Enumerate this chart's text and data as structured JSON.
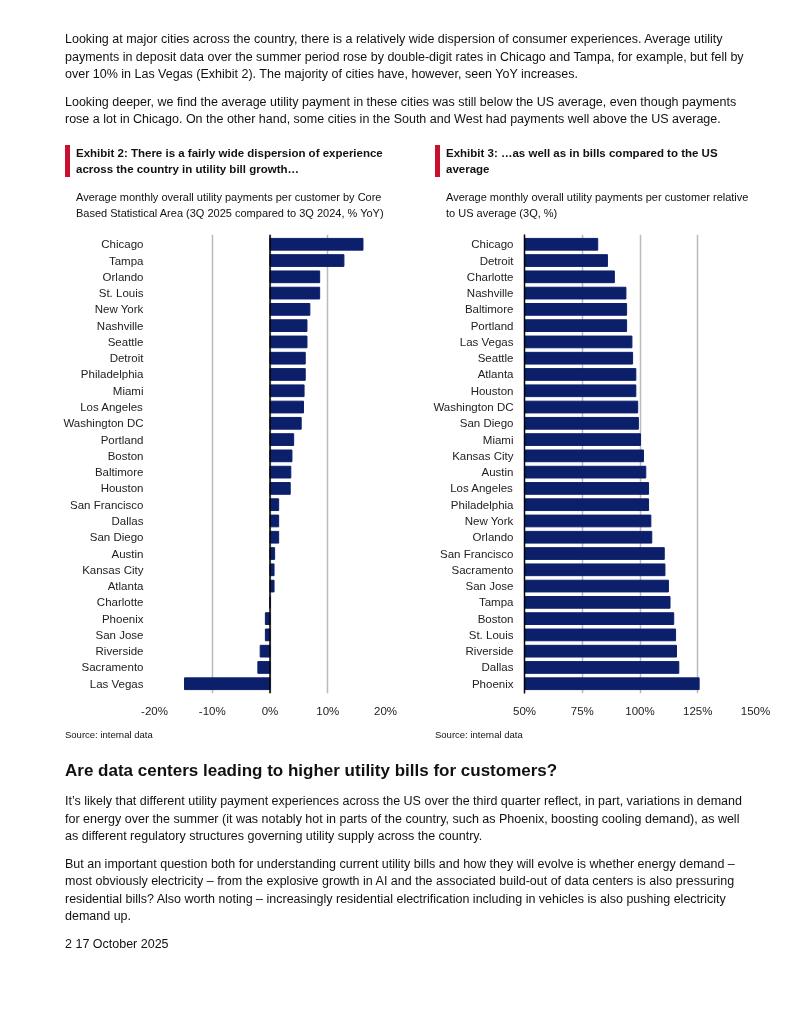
{
  "chart_data": [
    {
      "type": "other",
      "annotations": [
        "Looking at major cities across the country, there is a relatively wide dispersion of consumer experiences. Average utility payments in deposit data over the summer period rose by double-digit rates in Chicago and Tampa, for example, but fell by over 10% in Las Vegas (Exhibit 2). The majority of cities have, however, seen YoY increases.",
        "Looking deeper, we find the average utility payment in these cities was still below the US average, even though payments rose a lot in Chicago. On the other hand, some cities in the South and West had payments well above the US average."
      ]
    },
    {
      "type": "bar",
      "orientation": "horizontal",
      "title": "Exhibit 2: There is a fairly wide dispersion of experience across the country in utility bill growth…",
      "subtitle": "Average monthly overall utility payments per customer by Core Based Statistical Area (3Q 2025 compared to 3Q 2024, % YoY)",
      "categories": [
        "Chicago",
        "Tampa",
        "Orlando",
        "St. Louis",
        "New York",
        "Nashville",
        "Seattle",
        "Detroit",
        "Philadelphia",
        "Miami",
        "Los Angeles",
        "Washington DC",
        "Portland",
        "Boston",
        "Baltimore",
        "Houston",
        "San Francisco",
        "Dallas",
        "San Diego",
        "Austin",
        "Kansas City",
        "Atlanta",
        "Charlotte",
        "Phoenix",
        "San Jose",
        "Riverside",
        "Sacramento",
        "Las Vegas"
      ],
      "values": [
        16.1,
        12.8,
        8.6,
        8.6,
        6.9,
        6.4,
        6.4,
        6.1,
        6.1,
        5.9,
        5.8,
        5.4,
        4.1,
        3.8,
        3.6,
        3.5,
        1.5,
        1.5,
        1.5,
        0.8,
        0.7,
        0.7,
        0,
        -0.8,
        -0.8,
        -1.7,
        -2.1,
        -14.8
      ],
      "color": "#0c1f6b",
      "xlim": [
        -20,
        20
      ],
      "xticks": [
        {
          "value": -20,
          "label": "-20%"
        },
        {
          "value": -10,
          "label": "-10%"
        },
        {
          "value": 0,
          "label": "0%"
        },
        {
          "value": 10,
          "label": "10%"
        },
        {
          "value": 20,
          "label": "20%"
        }
      ],
      "grid": "x",
      "ref_lines": [
        {
          "axis": "x",
          "value": 0,
          "color": "#000000"
        }
      ],
      "annotations": [
        "Source: internal data"
      ]
    },
    {
      "type": "bar",
      "orientation": "horizontal",
      "title": "Exhibit 3: …as well as in bills compared to the US average",
      "subtitle": "Average monthly overall utility payments per customer relative to US average (3Q, %)",
      "categories": [
        "Chicago",
        "Detroit",
        "Charlotte",
        "Nashville",
        "Baltimore",
        "Portland",
        "Las Vegas",
        "Seattle",
        "Atlanta",
        "Houston",
        "Washington DC",
        "San Diego",
        "Miami",
        "Kansas City",
        "Austin",
        "Los Angeles",
        "Philadelphia",
        "New York",
        "Orlando",
        "San Francisco",
        "Sacramento",
        "San Jose",
        "Tampa",
        "Boston",
        "St. Louis",
        "Riverside",
        "Dallas",
        "Phoenix"
      ],
      "values": [
        81.7,
        85.9,
        88.9,
        93.9,
        94.2,
        94.2,
        96.5,
        96.8,
        98.2,
        98.2,
        99.0,
        99.3,
        100.2,
        101.5,
        102.5,
        103.7,
        103.7,
        104.7,
        105.1,
        110.5,
        110.8,
        112.3,
        113.0,
        114.6,
        115.4,
        115.8,
        116.8,
        125.6
      ],
      "color": "#0c1f6b",
      "xlim": [
        50,
        150
      ],
      "xticks": [
        {
          "value": 50,
          "label": "50%"
        },
        {
          "value": 75,
          "label": "75%"
        },
        {
          "value": 100,
          "label": "100%"
        },
        {
          "value": 125,
          "label": "125%"
        },
        {
          "value": 150,
          "label": "150%"
        }
      ],
      "grid": "x",
      "annotations": [
        "Source: internal data"
      ]
    },
    {
      "type": "other",
      "title": "Are data centers leading to higher utility bills for customers?",
      "annotations": [
        "It’s likely that different utility payment experiences across the US over the third quarter reflect, in part, variations in demand for energy over the summer (it was notably hot in parts of the country, such as Phoenix, boosting cooling demand), as well as different regulatory structures governing utility supply across the country.",
        "But an important question both for understanding current utility bills and how they will evolve is whether energy demand – most obviously electricity – from the explosive growth in AI and the associated build-out of data centers is also pressuring residential bills? Also worth noting – increasingly residential electrification including in vehicles is also pushing electricity demand up.",
        "2   17 October 2025"
      ]
    }
  ]
}
